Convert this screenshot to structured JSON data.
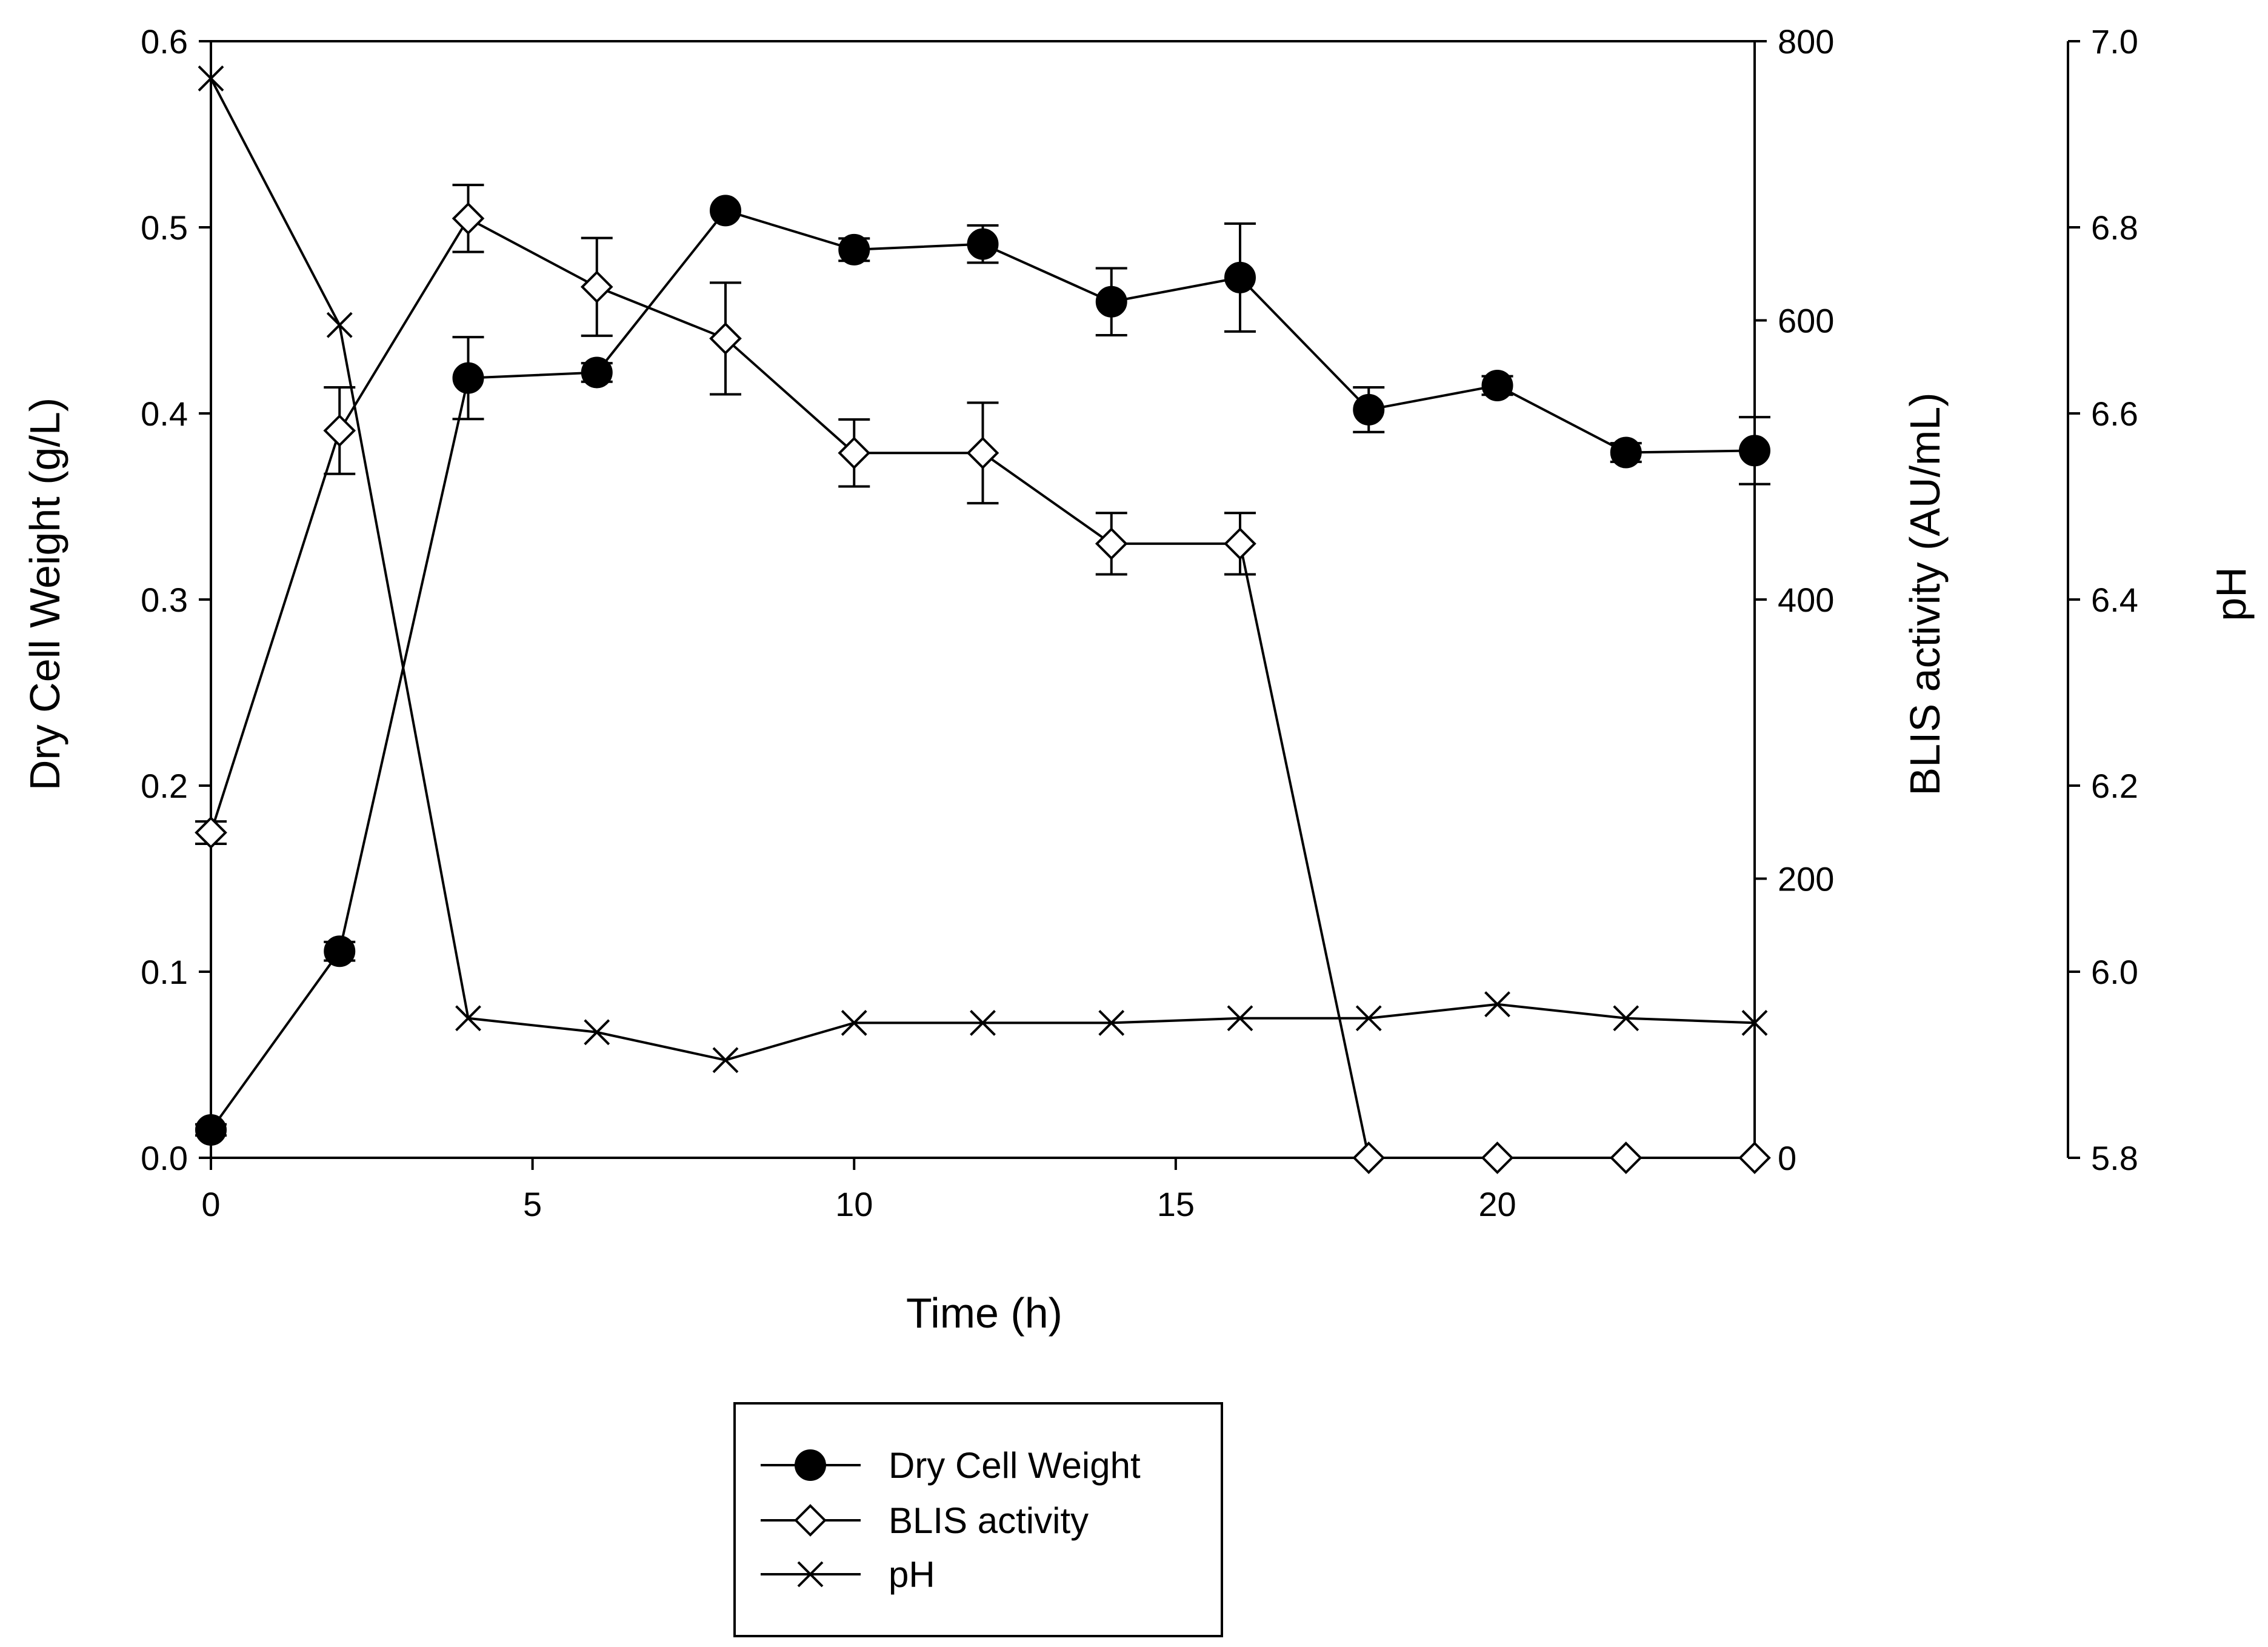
{
  "chart_data": {
    "type": "line",
    "x": [
      0,
      2,
      4,
      6,
      8,
      10,
      12,
      14,
      16,
      18,
      20,
      22,
      24
    ],
    "xlabel": "Time (h)",
    "xlim": [
      0,
      24
    ],
    "xticks": [
      0,
      5,
      10,
      15,
      20
    ],
    "axes": {
      "left": {
        "label": "Dry Cell Weight (g/L)",
        "lim": [
          0,
          0.6
        ],
        "ticks": [
          "0.0",
          "0.1",
          "0.2",
          "0.3",
          "0.4",
          "0.5",
          "0.6"
        ]
      },
      "right1": {
        "label": "BLIS activity (AU/mL)",
        "lim": [
          0,
          800
        ],
        "ticks": [
          "0",
          "200",
          "400",
          "600",
          "800"
        ]
      },
      "right2": {
        "label": "pH",
        "lim": [
          5.8,
          7.0
        ],
        "ticks": [
          "5.8",
          "6.0",
          "6.2",
          "6.4",
          "6.6",
          "6.8",
          "7.0"
        ]
      }
    },
    "series": [
      {
        "name": "Dry Cell Weight",
        "axis": "left",
        "marker": "filled-circle",
        "values": [
          0.015,
          0.111,
          0.419,
          0.422,
          0.509,
          0.488,
          0.491,
          0.46,
          0.473,
          0.402,
          0.415,
          0.379,
          0.38
        ],
        "errors": [
          0.003,
          0.005,
          0.022,
          0.005,
          0.0,
          0.006,
          0.01,
          0.018,
          0.029,
          0.012,
          0.005,
          0.005,
          0.018
        ]
      },
      {
        "name": "BLIS activity",
        "axis": "right1",
        "marker": "open-diamond",
        "values": [
          233,
          521,
          673,
          624,
          587,
          505,
          505,
          440,
          440,
          0,
          0,
          0,
          0
        ],
        "errors": [
          8,
          31,
          24,
          35,
          40,
          24,
          36,
          22,
          22,
          0,
          0,
          0,
          0
        ]
      },
      {
        "name": "pH",
        "axis": "right2",
        "marker": "cross",
        "values": [
          6.96,
          6.695,
          5.95,
          5.935,
          5.905,
          5.945,
          5.945,
          5.945,
          5.95,
          5.95,
          5.965,
          5.95,
          5.945
        ],
        "errors": [
          0,
          0,
          0,
          0,
          0,
          0,
          0,
          0,
          0,
          0,
          0,
          0,
          0
        ]
      }
    ],
    "legend": {
      "position": "bottom-center",
      "entries": [
        "Dry Cell Weight",
        "BLIS activity",
        "pH"
      ]
    }
  }
}
